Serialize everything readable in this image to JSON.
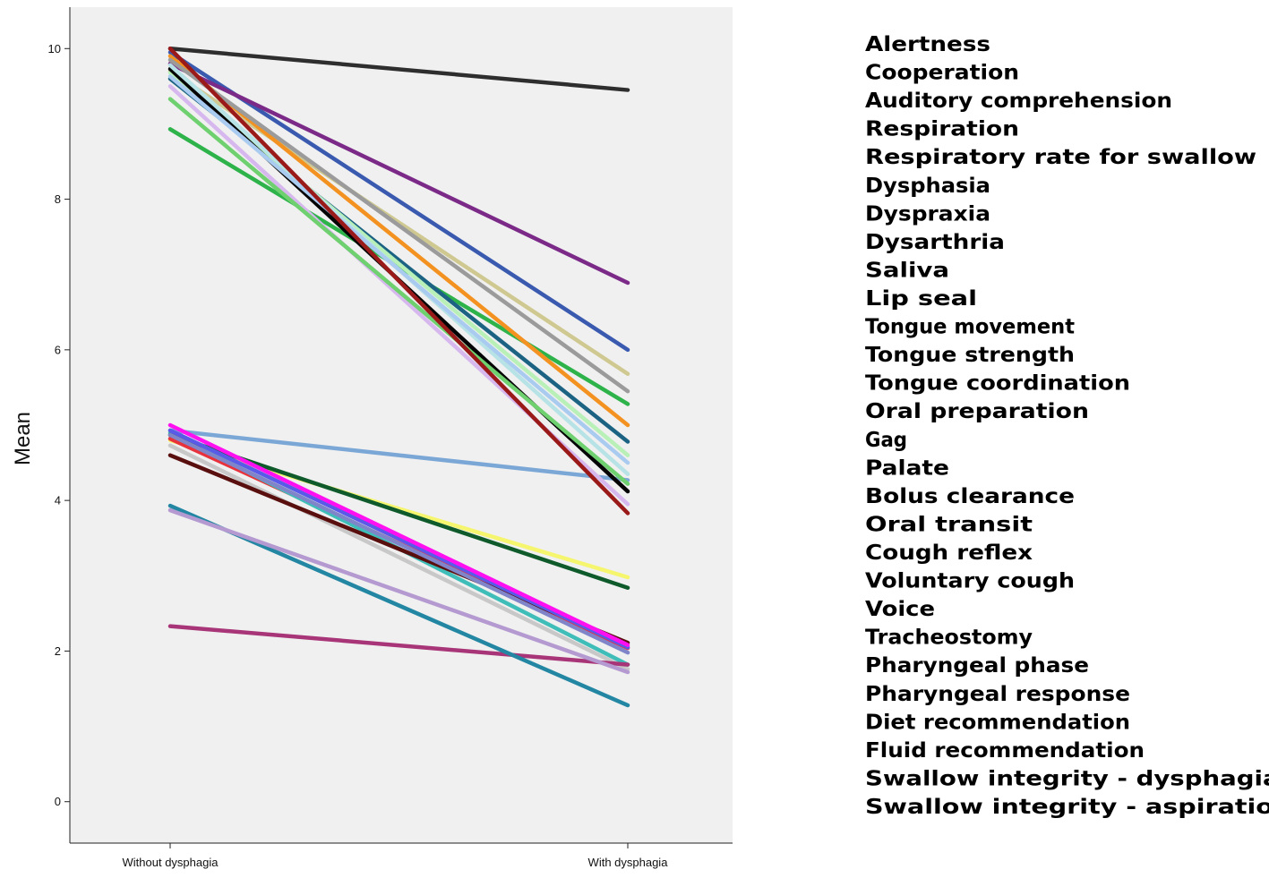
{
  "chart_data": {
    "type": "line",
    "title": "",
    "xlabel": "",
    "ylabel": "Mean",
    "ylim": [
      -0.55,
      10.55
    ],
    "yticks": [
      0,
      2,
      4,
      6,
      8,
      10
    ],
    "ytick_labels": [
      "0",
      "2",
      "4",
      "6",
      "8",
      "10"
    ],
    "grid": false,
    "legend_position": "right",
    "categories": [
      "Without dysphagia",
      "With dysphagia"
    ],
    "series": [
      {
        "name": "Alertness",
        "color": "#3a5ab0",
        "values": [
          9.95,
          6.0
        ]
      },
      {
        "name": "Cooperation",
        "color": "#2db34a",
        "values": [
          8.93,
          5.28
        ]
      },
      {
        "name": "Auditory comprehension",
        "color": "#cfc991",
        "values": [
          9.7,
          5.68
        ]
      },
      {
        "name": "Respiration",
        "color": "#7b2a88",
        "values": [
          9.8,
          6.89
        ]
      },
      {
        "name": "Respiratory rate for swallow",
        "color": "#f5f56e",
        "values": [
          4.8,
          2.98
        ]
      },
      {
        "name": "Dysphasia",
        "color": "#e8323c",
        "values": [
          4.82,
          2.04
        ]
      },
      {
        "name": "Dyspraxia",
        "color": "#3fbdb8",
        "values": [
          4.9,
          1.82
        ]
      },
      {
        "name": "Dysarthria",
        "color": "#c8c8c8",
        "values": [
          4.73,
          1.76
        ]
      },
      {
        "name": "Saliva",
        "color": "#7ba7d6",
        "values": [
          4.93,
          4.27
        ]
      },
      {
        "name": "Lip seal",
        "color": "#0e5a2b",
        "values": [
          4.87,
          2.84
        ]
      },
      {
        "name": "Tongue movement",
        "color": "#f39220",
        "values": [
          9.9,
          5.0
        ]
      },
      {
        "name": "Tongue strength",
        "color": "#d7b8ee",
        "values": [
          9.5,
          3.95
        ]
      },
      {
        "name": "Tongue coordination",
        "color": "#1c6383",
        "values": [
          9.6,
          4.78
        ]
      },
      {
        "name": "Oral preparation",
        "color": "#b8f0b8",
        "values": [
          9.68,
          4.6
        ]
      },
      {
        "name": "Gag",
        "color": "#a83577",
        "values": [
          2.33,
          1.82
        ]
      },
      {
        "name": "Palate",
        "color": "#9b9b9b",
        "values": [
          9.85,
          5.45
        ]
      },
      {
        "name": "Bolus clearance",
        "color": "#050505",
        "values": [
          9.73,
          4.12
        ]
      },
      {
        "name": "Oral transit",
        "color": "#b8e3e6",
        "values": [
          9.78,
          4.35
        ]
      },
      {
        "name": "Cough reflex",
        "color": "#5a0f0f",
        "values": [
          4.6,
          2.11
        ]
      },
      {
        "name": "Voluntary cough",
        "color": "#7f85c8",
        "values": [
          4.87,
          1.98
        ]
      },
      {
        "name": "Voice",
        "color": "#6fd06f",
        "values": [
          9.33,
          4.22
        ]
      },
      {
        "name": "Tracheostomy",
        "color": "#2e2e2e",
        "values": [
          10.0,
          9.45
        ]
      },
      {
        "name": "Pharyngeal phase",
        "color": "#aacbf0",
        "values": [
          9.63,
          4.5
        ]
      },
      {
        "name": "Pharyngeal response",
        "color": "#9a1a1a",
        "values": [
          10.0,
          3.83
        ]
      },
      {
        "name": "Diet recommendation",
        "color": "#5a5ae8",
        "values": [
          4.93,
          2.05
        ]
      },
      {
        "name": "Fluid recommendation",
        "color": "#ff10f0",
        "values": [
          5.0,
          2.08
        ]
      },
      {
        "name": "Swallow integrity - dysphagia risk",
        "color": "#2387a3",
        "values": [
          3.93,
          1.28
        ]
      },
      {
        "name": "Swallow integrity - aspiration risk",
        "color": "#b49ad0",
        "values": [
          3.87,
          1.72
        ]
      }
    ]
  }
}
